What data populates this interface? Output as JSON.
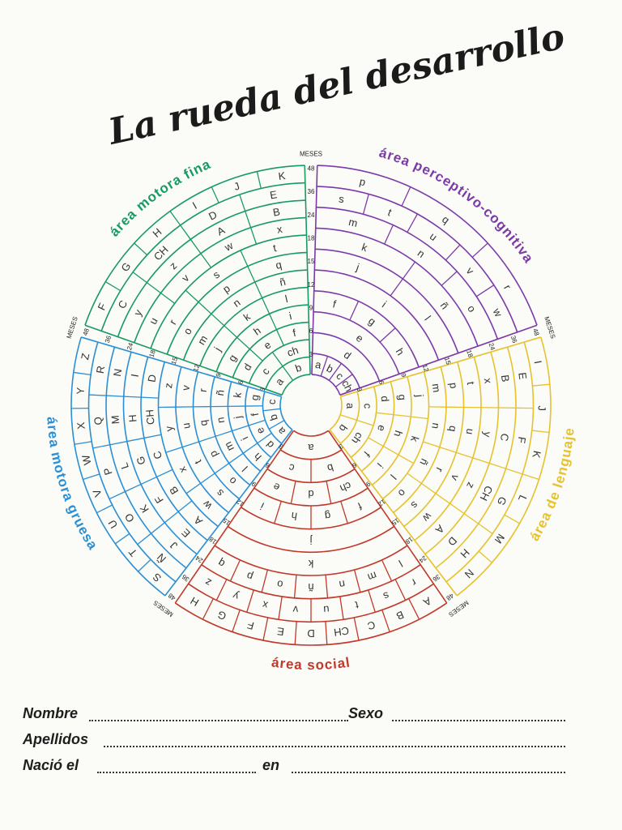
{
  "title": "La rueda del desarrollo",
  "months_label": "MESES",
  "month_ticks": [
    "3",
    "6",
    "9",
    "12",
    "15",
    "18",
    "24",
    "36",
    "48"
  ],
  "sectors": [
    {
      "key": "motora_fina",
      "name": "área motora fina",
      "color": "#1a9a63",
      "start_deg": 288,
      "end_deg": 360,
      "rings": [
        [
          "a",
          "b"
        ],
        [
          "c",
          "ch"
        ],
        [
          "d",
          "e",
          "f"
        ],
        [
          "g",
          "h",
          "i"
        ],
        [
          "j",
          "k",
          "l"
        ],
        [
          "m",
          "n",
          "ñ"
        ],
        [
          "o",
          "p",
          "q"
        ],
        [
          "r",
          "s",
          "t"
        ],
        [
          "u",
          "v",
          "w",
          "x"
        ],
        [
          "y",
          "z",
          "A",
          "B"
        ],
        [
          "C",
          "CH",
          "D",
          "E"
        ],
        [
          "F",
          "G",
          "H",
          "I",
          "J",
          "K"
        ]
      ]
    },
    {
      "key": "perceptivo",
      "name": "área perceptivo-cognitiva",
      "color": "#7b3aa8",
      "start_deg": 0,
      "end_deg": 72,
      "rings": [
        [
          "a",
          "b",
          "c",
          "ch"
        ],
        [
          "d"
        ],
        [
          "e"
        ],
        [
          "f",
          "g",
          "h"
        ],
        [
          "i"
        ],
        [
          "j",
          "l"
        ],
        [
          "k",
          "ñ"
        ],
        [
          "m",
          "n",
          "o"
        ],
        [
          "s",
          "t",
          "u",
          "v",
          "w"
        ],
        [
          "p",
          "q",
          "r"
        ]
      ]
    },
    {
      "key": "lenguaje",
      "name": "área de lenguaje",
      "color": "#e6c22e",
      "start_deg": 72,
      "end_deg": 144,
      "rings": [
        [
          "a",
          "b"
        ],
        [
          "c",
          "ch"
        ],
        [
          "d",
          "e",
          "f"
        ],
        [
          "g",
          "h",
          "i"
        ],
        [
          "j",
          "k",
          "l"
        ],
        [
          "m",
          "n",
          "ñ",
          "o"
        ],
        [
          "p",
          "q",
          "r",
          "s"
        ],
        [
          "t",
          "u",
          "v",
          "w"
        ],
        [
          "x",
          "y",
          "z",
          "A"
        ],
        [
          "B",
          "C",
          "CH",
          "D"
        ],
        [
          "E",
          "F",
          "G",
          "H"
        ],
        [
          "I",
          "J",
          "K",
          "L",
          "M",
          "N"
        ]
      ]
    },
    {
      "key": "social",
      "name": "área social",
      "color": "#c0392b",
      "start_deg": 144,
      "end_deg": 216,
      "rings": [
        [
          "a"
        ],
        [
          "b",
          "c"
        ],
        [
          "ch",
          "d",
          "e"
        ],
        [
          "f",
          "g",
          "h",
          "i"
        ],
        [
          "j"
        ],
        [
          "k"
        ],
        [
          "l",
          "m",
          "n",
          "ñ",
          "o",
          "p",
          "q"
        ],
        [
          "r",
          "s",
          "t",
          "u",
          "v",
          "x",
          "y",
          "z"
        ],
        [
          "A",
          "B",
          "C",
          "CH",
          "D",
          "E",
          "F",
          "G",
          "H"
        ]
      ]
    },
    {
      "key": "motora_gruesa",
      "name": "área motora gruesa",
      "color": "#2a8fd4",
      "start_deg": 216,
      "end_deg": 288,
      "rings": [
        [
          "a",
          "b",
          "c"
        ],
        [
          "d",
          "e",
          "f",
          "g"
        ],
        [
          "h",
          "i",
          "j",
          "k"
        ],
        [
          "l",
          "m",
          "n",
          "ñ"
        ],
        [
          "o",
          "p",
          "q",
          "r"
        ],
        [
          "s",
          "t",
          "u",
          "v"
        ],
        [
          "w",
          "x",
          "y",
          "z"
        ],
        [
          "A",
          "B",
          "C",
          "CH",
          "D"
        ],
        [
          "E",
          "F",
          "G",
          "H",
          "I"
        ],
        [
          "J",
          "K",
          "L",
          "M",
          "N"
        ],
        [
          "Ñ",
          "O",
          "P",
          "Q",
          "R"
        ],
        [
          "S",
          "T",
          "U",
          "V",
          "W",
          "X",
          "Y",
          "Z"
        ]
      ]
    }
  ],
  "form": {
    "nombre_label": "Nombre",
    "sexo_label": "Sexo",
    "apellidos_label": "Apellidos",
    "nacio_label": "Nació el",
    "en_label": "en"
  }
}
